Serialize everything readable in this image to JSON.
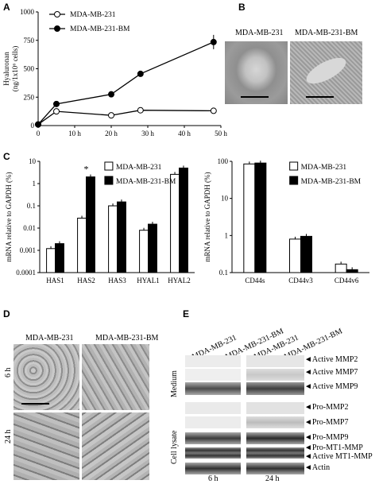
{
  "panels": {
    "A": "A",
    "B": "B",
    "C": "C",
    "D": "D",
    "E": "E"
  },
  "chart_data": [
    {
      "panel": "A",
      "type": "line",
      "ylabel": "Hyaluronan (ng/1x10^6 cells)",
      "ylabel_line1": "Hyaluronan",
      "ylabel_line2": "(ng/1x10⁶ cells)",
      "ylim": [
        0,
        1000
      ],
      "yticks": [
        "0",
        "250",
        "500",
        "750",
        "1000"
      ],
      "xlim": [
        0,
        50
      ],
      "xticks": [
        "0",
        "10 h",
        "20 h",
        "30 h",
        "40 h",
        "50 h"
      ],
      "series": [
        {
          "name": "MDA-MB-231",
          "marker": "open",
          "x": [
            0,
            5,
            20,
            28,
            48
          ],
          "y": [
            10,
            125,
            90,
            135,
            130
          ]
        },
        {
          "name": "MDA-MB-231-BM",
          "marker": "filled",
          "x": [
            0,
            5,
            20,
            28,
            48
          ],
          "y": [
            10,
            190,
            275,
            455,
            735
          ]
        }
      ]
    },
    {
      "panel": "C-left",
      "type": "bar",
      "scale": "log",
      "ylabel": "mRNA relative to GAPDH (%)",
      "ylim": [
        0.0001,
        10
      ],
      "yticks": [
        "0.0001",
        "0.001",
        "0.01",
        "0.1",
        "1",
        "10"
      ],
      "categories": [
        "HAS1",
        "HAS2",
        "HAS3",
        "HYAL1",
        "HYAL2"
      ],
      "series": [
        {
          "name": "MDA-MB-231",
          "values": [
            0.0012,
            0.028,
            0.1,
            0.008,
            2.6
          ]
        },
        {
          "name": "MDA-MB-231-BM",
          "values": [
            0.002,
            2.0,
            0.15,
            0.015,
            5.0
          ]
        }
      ],
      "annotations": [
        "*"
      ]
    },
    {
      "panel": "C-right",
      "type": "bar",
      "scale": "log",
      "ylabel": "mRNA relative to GAPDH (%)",
      "ylim": [
        0.1,
        100
      ],
      "yticks": [
        "0.1",
        "1",
        "10",
        "100"
      ],
      "categories": [
        "CD44s",
        "CD44v3",
        "CD44v6"
      ],
      "series": [
        {
          "name": "MDA-MB-231",
          "values": [
            85,
            0.8,
            0.17
          ]
        },
        {
          "name": "MDA-MB-231-BM",
          "values": [
            90,
            0.95,
            0.12
          ]
        }
      ]
    }
  ],
  "panelB": {
    "label1": "MDA-MB-231",
    "label2": "MDA-MB-231-BM"
  },
  "panelD": {
    "col1": "MDA-MB-231",
    "col2": "MDA-MB-231-BM",
    "row1": "6 h",
    "row2": "24 h"
  },
  "panelE": {
    "lanes": [
      "MDA-MB-231",
      "MDA-MB-231-BM",
      "MDA-MB-231",
      "MDA-MB-231-BM"
    ],
    "medium": "Medium",
    "lysate": "Cell lysate",
    "bands_medium": [
      "◄Active MMP2",
      "◄Active MMP7",
      "◄Active MMP9"
    ],
    "bands_lysate": [
      "◄Pro-MMP2",
      "◄Pro-MMP7",
      "◄Pro-MMP9",
      "◄Pro-MT1-MMP",
      "◄Active MT1-MMP",
      "◄Actin"
    ],
    "time1": "6 h",
    "time2": "24 h"
  }
}
